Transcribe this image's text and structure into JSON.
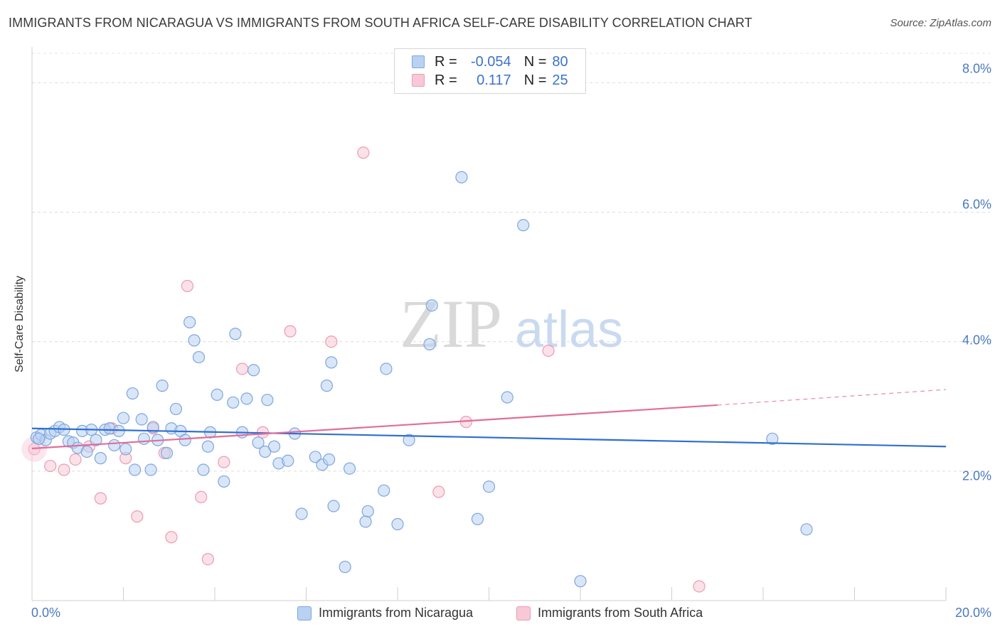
{
  "header": {
    "title": "IMMIGRANTS FROM NICARAGUA VS IMMIGRANTS FROM SOUTH AFRICA SELF-CARE DISABILITY CORRELATION CHART",
    "source": "Source: ZipAtlas.com"
  },
  "watermark": {
    "zip": "ZIP",
    "atlas": "atlas"
  },
  "legend": {
    "rows": [
      {
        "r_label": "R =",
        "r_value": "-0.054",
        "n_label": "N =",
        "n_value": "80"
      },
      {
        "r_label": "R =",
        "r_value": "0.117",
        "n_label": "N =",
        "n_value": "25"
      }
    ]
  },
  "colors": {
    "nicaragua_fill": "#b9d2f2",
    "nicaragua_stroke": "#7ea6df",
    "nicaragua_line": "#2f6fd0",
    "south_africa_fill": "#f8c8d6",
    "south_africa_stroke": "#ec9bb5",
    "south_africa_line": "#e26d97",
    "axis_text": "#4a78c2"
  },
  "chart_data": {
    "type": "scatter",
    "title": "IMMIGRANTS FROM NICARAGUA VS IMMIGRANTS FROM SOUTH AFRICA SELF-CARE DISABILITY CORRELATION CHART",
    "xlabel": "",
    "ylabel": "Self-Care Disability",
    "xlim": [
      0,
      20
    ],
    "ylim": [
      0,
      8.4
    ],
    "x_tick_labels": [
      "0.0%",
      "20.0%"
    ],
    "y_ticks": [
      2,
      4,
      6,
      8
    ],
    "y_tick_labels": [
      "2.0%",
      "4.0%",
      "6.0%",
      "8.0%"
    ],
    "grid": "horizontal dashed",
    "legend_position": "bottom",
    "series": [
      {
        "name": "Immigrants from Nicaragua",
        "r": -0.054,
        "n": 80,
        "trend": {
          "x": [
            0,
            20
          ],
          "y": [
            2.66,
            2.38
          ]
        },
        "points": [
          [
            0.1,
            2.52
          ],
          [
            0.2,
            2.56
          ],
          [
            0.3,
            2.48
          ],
          [
            0.4,
            2.58
          ],
          [
            0.5,
            2.62
          ],
          [
            0.6,
            2.68
          ],
          [
            0.7,
            2.64
          ],
          [
            0.8,
            2.46
          ],
          [
            0.9,
            2.44
          ],
          [
            1.0,
            2.36
          ],
          [
            1.1,
            2.62
          ],
          [
            1.2,
            2.3
          ],
          [
            1.3,
            2.64
          ],
          [
            1.4,
            2.48
          ],
          [
            1.5,
            2.2
          ],
          [
            1.6,
            2.64
          ],
          [
            1.7,
            2.66
          ],
          [
            1.8,
            2.4
          ],
          [
            1.9,
            2.62
          ],
          [
            2.0,
            2.82
          ],
          [
            2.05,
            2.34
          ],
          [
            2.2,
            3.2
          ],
          [
            2.25,
            2.02
          ],
          [
            2.4,
            2.8
          ],
          [
            2.45,
            2.5
          ],
          [
            2.6,
            2.02
          ],
          [
            2.65,
            2.68
          ],
          [
            2.75,
            2.48
          ],
          [
            2.85,
            3.32
          ],
          [
            2.95,
            2.28
          ],
          [
            3.05,
            2.66
          ],
          [
            3.15,
            2.96
          ],
          [
            3.25,
            2.62
          ],
          [
            3.35,
            2.48
          ],
          [
            3.45,
            4.3
          ],
          [
            3.55,
            4.02
          ],
          [
            3.65,
            3.76
          ],
          [
            3.75,
            2.02
          ],
          [
            3.85,
            2.38
          ],
          [
            3.9,
            2.6
          ],
          [
            4.05,
            3.18
          ],
          [
            4.2,
            1.84
          ],
          [
            4.4,
            3.06
          ],
          [
            4.45,
            4.12
          ],
          [
            4.6,
            2.6
          ],
          [
            4.7,
            3.12
          ],
          [
            4.85,
            3.56
          ],
          [
            4.95,
            2.44
          ],
          [
            5.1,
            2.3
          ],
          [
            5.15,
            3.1
          ],
          [
            5.3,
            2.38
          ],
          [
            5.4,
            2.12
          ],
          [
            5.6,
            2.16
          ],
          [
            5.75,
            2.58
          ],
          [
            5.9,
            1.34
          ],
          [
            6.2,
            2.22
          ],
          [
            6.35,
            2.1
          ],
          [
            6.45,
            3.32
          ],
          [
            6.5,
            2.18
          ],
          [
            6.55,
            3.68
          ],
          [
            6.6,
            1.46
          ],
          [
            6.85,
            0.52
          ],
          [
            6.95,
            2.04
          ],
          [
            7.3,
            1.22
          ],
          [
            7.35,
            1.38
          ],
          [
            7.7,
            1.7
          ],
          [
            7.75,
            3.58
          ],
          [
            8.0,
            1.18
          ],
          [
            8.25,
            2.48
          ],
          [
            8.7,
            3.96
          ],
          [
            8.75,
            4.56
          ],
          [
            9.4,
            6.54
          ],
          [
            9.75,
            1.26
          ],
          [
            10.0,
            1.76
          ],
          [
            10.4,
            3.14
          ],
          [
            10.75,
            5.8
          ],
          [
            12.0,
            0.3
          ],
          [
            16.2,
            2.5
          ],
          [
            16.95,
            1.1
          ],
          [
            0.15,
            2.5
          ]
        ]
      },
      {
        "name": "Immigrants from South Africa",
        "r": 0.117,
        "n": 25,
        "trend": {
          "x": [
            0,
            15
          ],
          "y": [
            2.35,
            3.02
          ]
        },
        "trend_dashed": {
          "x": [
            15,
            20
          ],
          "y": [
            3.02,
            3.26
          ]
        },
        "points": [
          [
            0.05,
            2.34
          ],
          [
            0.4,
            2.08
          ],
          [
            0.7,
            2.02
          ],
          [
            0.95,
            2.18
          ],
          [
            1.25,
            2.38
          ],
          [
            1.5,
            1.58
          ],
          [
            1.75,
            2.66
          ],
          [
            2.05,
            2.2
          ],
          [
            2.3,
            1.3
          ],
          [
            2.65,
            2.66
          ],
          [
            2.9,
            2.28
          ],
          [
            3.05,
            0.98
          ],
          [
            3.4,
            4.86
          ],
          [
            3.7,
            1.6
          ],
          [
            3.85,
            0.64
          ],
          [
            4.2,
            2.14
          ],
          [
            4.6,
            3.58
          ],
          [
            5.05,
            2.6
          ],
          [
            5.65,
            4.16
          ],
          [
            6.55,
            4.0
          ],
          [
            7.25,
            6.92
          ],
          [
            8.9,
            1.68
          ],
          [
            9.5,
            2.76
          ],
          [
            11.3,
            3.86
          ],
          [
            14.6,
            0.22
          ]
        ]
      }
    ]
  },
  "axis": {
    "ylabel": "Self-Care Disability",
    "x_min_label": "0.0%",
    "x_max_label": "20.0%",
    "y_labels": [
      "2.0%",
      "4.0%",
      "6.0%",
      "8.0%"
    ]
  },
  "bottom_legend": {
    "nicaragua": "Immigrants from Nicaragua",
    "south_africa": "Immigrants from South Africa"
  }
}
